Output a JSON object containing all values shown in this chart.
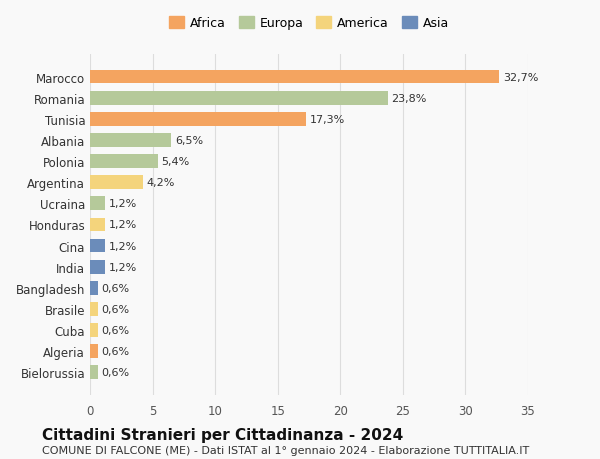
{
  "categories": [
    "Bielorussia",
    "Algeria",
    "Cuba",
    "Brasile",
    "Bangladesh",
    "India",
    "Cina",
    "Honduras",
    "Ucraina",
    "Argentina",
    "Polonia",
    "Albania",
    "Tunisia",
    "Romania",
    "Marocco"
  ],
  "values": [
    0.6,
    0.6,
    0.6,
    0.6,
    0.6,
    1.2,
    1.2,
    1.2,
    1.2,
    4.2,
    5.4,
    6.5,
    17.3,
    23.8,
    32.7
  ],
  "labels": [
    "0,6%",
    "0,6%",
    "0,6%",
    "0,6%",
    "0,6%",
    "1,2%",
    "1,2%",
    "1,2%",
    "1,2%",
    "4,2%",
    "5,4%",
    "6,5%",
    "17,3%",
    "23,8%",
    "32,7%"
  ],
  "colors": [
    "#b5c99a",
    "#f4a460",
    "#f4d47c",
    "#f4d47c",
    "#6b8cba",
    "#6b8cba",
    "#6b8cba",
    "#f4d47c",
    "#b5c99a",
    "#f4d47c",
    "#b5c99a",
    "#b5c99a",
    "#f4a460",
    "#b5c99a",
    "#f4a460"
  ],
  "continent_colors": {
    "Africa": "#f4a460",
    "Europa": "#b5c99a",
    "America": "#f4d47c",
    "Asia": "#6b8cba"
  },
  "title": "Cittadini Stranieri per Cittadinanza - 2024",
  "subtitle": "COMUNE DI FALCONE (ME) - Dati ISTAT al 1° gennaio 2024 - Elaborazione TUTTITALIA.IT",
  "xlim": [
    0,
    35
  ],
  "xticks": [
    0,
    5,
    10,
    15,
    20,
    25,
    30,
    35
  ],
  "background_color": "#f9f9f9",
  "grid_color": "#dddddd",
  "bar_height": 0.65,
  "title_fontsize": 11,
  "subtitle_fontsize": 8,
  "tick_fontsize": 8.5,
  "label_fontsize": 8,
  "legend_fontsize": 9
}
